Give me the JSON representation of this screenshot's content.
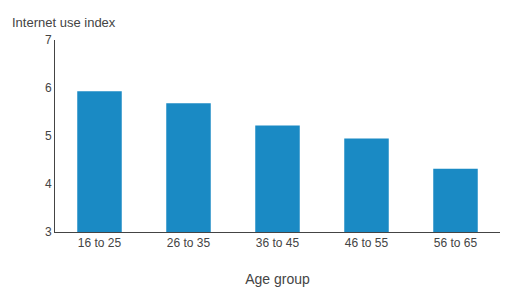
{
  "chart_data": {
    "type": "bar",
    "categories": [
      "16 to 25",
      "26 to 35",
      "36 to 45",
      "46 to 55",
      "56 to 65"
    ],
    "values": [
      5.93,
      5.68,
      5.22,
      4.95,
      4.32
    ],
    "color": "#1a8ac4",
    "xlabel": "Age group",
    "ylabel": "Internet use index",
    "ylim": [
      3,
      7
    ],
    "yticks": [
      3,
      4,
      5,
      6,
      7
    ],
    "grid": false
  }
}
